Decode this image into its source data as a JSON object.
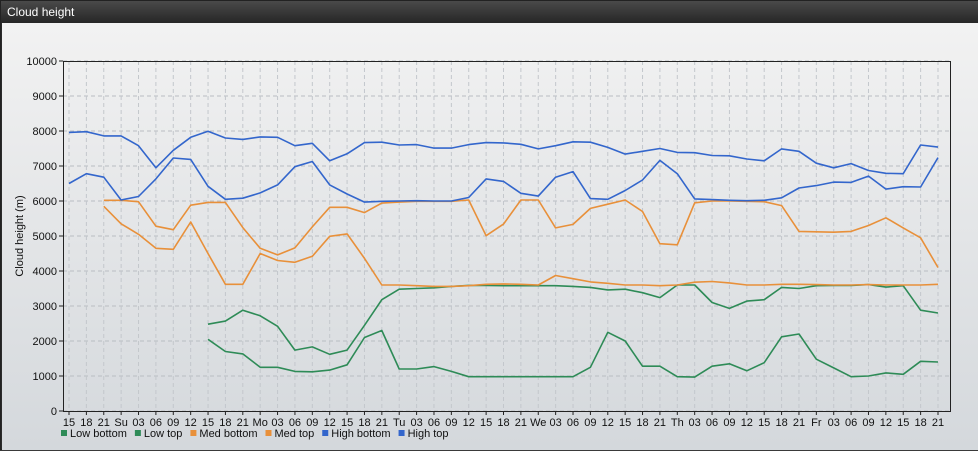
{
  "window": {
    "title": "Cloud height"
  },
  "chart_data": {
    "type": "line",
    "ylabel": "Cloud height (m)",
    "ylim": [
      0,
      10000
    ],
    "y_ticks": [
      0,
      1000,
      2000,
      3000,
      4000,
      5000,
      6000,
      7000,
      8000,
      9000,
      10000
    ],
    "grid": true,
    "legend_position": "bottom-left",
    "x": [
      "15",
      "18",
      "21",
      "Su",
      "03",
      "06",
      "09",
      "12",
      "15",
      "18",
      "21",
      "Mo",
      "03",
      "06",
      "09",
      "12",
      "15",
      "18",
      "21",
      "Tu",
      "03",
      "06",
      "09",
      "12",
      "15",
      "18",
      "21",
      "We",
      "03",
      "06",
      "09",
      "12",
      "15",
      "18",
      "21",
      "Th",
      "03",
      "06",
      "09",
      "12",
      "15",
      "18",
      "21",
      "Fr",
      "03",
      "06",
      "09",
      "12",
      "15",
      "18",
      "21"
    ],
    "series": [
      {
        "name": "Low bottom",
        "color": "#2e8b57",
        "values": [
          null,
          null,
          null,
          null,
          null,
          null,
          null,
          null,
          2050,
          1700,
          1630,
          1250,
          1250,
          1130,
          1120,
          1170,
          1320,
          2100,
          2300,
          1200,
          1200,
          1270,
          1130,
          980,
          980,
          980,
          980,
          980,
          980,
          980,
          1250,
          2250,
          2000,
          1280,
          1280,
          980,
          970,
          1280,
          1350,
          1150,
          1380,
          2120,
          2200,
          1480,
          1230,
          980,
          1000,
          1090,
          1050,
          1420,
          1400
        ]
      },
      {
        "name": "Low top",
        "color": "#2e8b57",
        "values": [
          null,
          null,
          null,
          null,
          null,
          null,
          null,
          null,
          2480,
          2570,
          2880,
          2720,
          2420,
          1740,
          1830,
          1620,
          1740,
          2450,
          3180,
          3480,
          3500,
          3520,
          3560,
          3590,
          3590,
          3580,
          3580,
          3580,
          3580,
          3560,
          3530,
          3460,
          3480,
          3380,
          3240,
          3600,
          3600,
          3100,
          2930,
          3140,
          3180,
          3530,
          3500,
          3580,
          3590,
          3590,
          3610,
          3540,
          3580,
          2880,
          2800
        ]
      },
      {
        "name": "Med bottom",
        "color": "#e8903a",
        "values": [
          null,
          null,
          5850,
          5350,
          5050,
          4650,
          4620,
          5400,
          4500,
          3620,
          3620,
          4500,
          4300,
          4250,
          4420,
          4990,
          5060,
          4360,
          3600,
          3600,
          3580,
          3560,
          3560,
          3580,
          3620,
          3630,
          3620,
          3600,
          3870,
          3780,
          3690,
          3650,
          3600,
          3600,
          3580,
          3600,
          3680,
          3700,
          3660,
          3600,
          3600,
          3620,
          3620,
          3610,
          3600,
          3600,
          3610,
          3600,
          3600,
          3600,
          3620
        ]
      },
      {
        "name": "Med top",
        "color": "#e8903a",
        "values": [
          null,
          null,
          6020,
          6020,
          5980,
          5280,
          5180,
          5880,
          5960,
          5960,
          5240,
          4650,
          4460,
          4660,
          5260,
          5820,
          5820,
          5670,
          5940,
          5970,
          5990,
          5990,
          5990,
          6030,
          5010,
          5340,
          6030,
          6030,
          5230,
          5330,
          5790,
          5910,
          6030,
          5700,
          4780,
          4750,
          5950,
          6000,
          6000,
          5990,
          5980,
          5870,
          5130,
          5120,
          5110,
          5130,
          5300,
          5520,
          5230,
          4950,
          4100
        ]
      },
      {
        "name": "High bottom",
        "color": "#3366cc",
        "values": [
          6500,
          6780,
          6680,
          6030,
          6130,
          6630,
          7230,
          7190,
          6420,
          6050,
          6080,
          6230,
          6460,
          6980,
          7130,
          6460,
          6200,
          5970,
          5990,
          6000,
          6010,
          6000,
          6000,
          6100,
          6630,
          6560,
          6220,
          6140,
          6680,
          6840,
          6070,
          6050,
          6300,
          6600,
          7160,
          6780,
          6060,
          6040,
          6020,
          6010,
          6020,
          6090,
          6370,
          6440,
          6540,
          6530,
          6710,
          6340,
          6410,
          6400,
          7240
        ]
      },
      {
        "name": "High top",
        "color": "#3366cc",
        "values": [
          7960,
          7980,
          7860,
          7860,
          7580,
          6950,
          7450,
          7820,
          7990,
          7800,
          7760,
          7830,
          7820,
          7580,
          7650,
          7150,
          7350,
          7670,
          7680,
          7600,
          7610,
          7510,
          7510,
          7610,
          7670,
          7660,
          7620,
          7490,
          7580,
          7690,
          7680,
          7530,
          7340,
          7420,
          7500,
          7390,
          7380,
          7300,
          7290,
          7200,
          7150,
          7490,
          7420,
          7080,
          6950,
          7070,
          6870,
          6790,
          6780,
          7600,
          7540
        ]
      }
    ]
  }
}
